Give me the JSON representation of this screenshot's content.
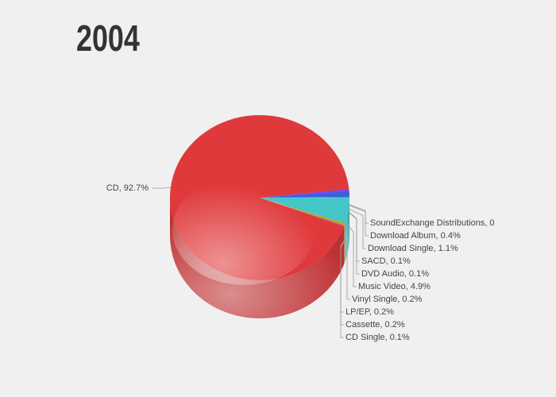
{
  "chart_data": {
    "type": "pie",
    "title": "2004",
    "values": [
      92.7,
      0,
      0.4,
      1.1,
      0.1,
      0.1,
      4.9,
      0.2,
      0.2,
      0.2,
      0.1
    ],
    "value_labels": [
      "CD, 92.7%",
      "SoundExchange Distributions, 0",
      "Download Album, 0.4%",
      "Download Single, 1.1%",
      "SACD, 0.1%",
      "DVD Audio, 0.1%",
      "Music Video, 4.9%",
      "Vinyl Single, 0.2%",
      "LP/EP, 0.2%",
      "Cassette, 0.2%",
      "CD Single, 0.1%"
    ],
    "colors": [
      "#e0393b",
      "#9b59b6",
      "#7b3fe4",
      "#3a5fe0",
      "#2e86c1",
      "#1abc9c",
      "#45c6c8",
      "#7cb342",
      "#c0a030",
      "#e67e22",
      "#8e44ad"
    ]
  }
}
